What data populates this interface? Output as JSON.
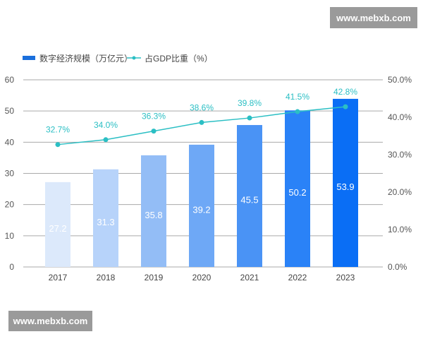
{
  "watermarks": {
    "top": "www.mebxb.com",
    "bottom": "www.mebxb.com"
  },
  "chart_data": {
    "type": "bar+line",
    "categories": [
      "2017",
      "2018",
      "2019",
      "2020",
      "2021",
      "2022",
      "2023"
    ],
    "series": [
      {
        "name": "数字经济规模（万亿元）",
        "type": "bar",
        "axis": "left",
        "values": [
          27.2,
          31.3,
          35.8,
          39.2,
          45.5,
          50.2,
          53.9
        ],
        "labels": [
          "27.2",
          "31.3",
          "35.8",
          "39.2",
          "45.5",
          "50.2",
          "53.9"
        ],
        "colors": [
          "#dce9fb",
          "#b7d3fa",
          "#93bdf6",
          "#6ea8f6",
          "#4a93f5",
          "#2a82f7",
          "#0a6ef5"
        ]
      },
      {
        "name": "占GDP比重（%）",
        "type": "line",
        "axis": "right",
        "values": [
          32.7,
          34.0,
          36.3,
          38.6,
          39.8,
          41.5,
          42.8
        ],
        "labels": [
          "32.7%",
          "34.0%",
          "36.3%",
          "38.6%",
          "39.8%",
          "41.5%",
          "42.8%"
        ],
        "color": "#2bbfc4"
      }
    ],
    "y_left": {
      "range": [
        0,
        60
      ],
      "ticks": [
        "0",
        "10",
        "20",
        "30",
        "40",
        "50",
        "60"
      ]
    },
    "y_right": {
      "range": [
        0,
        50
      ],
      "ticks": [
        "0.0%",
        "10.0%",
        "20.0%",
        "30.0%",
        "40.0%",
        "50.0%"
      ]
    },
    "grid": true,
    "legend_position": "top-left",
    "legend_color_bar": "#1a6fdc"
  }
}
